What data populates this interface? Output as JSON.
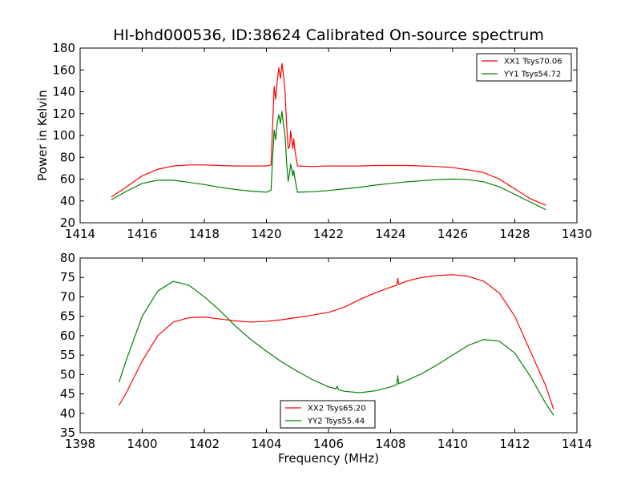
{
  "figure": {
    "title": "HI-bhd000536, ID:38624 Calibrated On-source spectrum",
    "background": "#ffffff"
  },
  "chart_data": [
    {
      "type": "line",
      "ylabel": "Power in Kelvin",
      "xlabel": "",
      "xlim": [
        1414,
        1430
      ],
      "ylim": [
        20,
        180
      ],
      "x_ticks": [
        1414,
        1416,
        1418,
        1420,
        1422,
        1424,
        1426,
        1428,
        1430
      ],
      "y_ticks": [
        20,
        40,
        60,
        80,
        100,
        120,
        140,
        160,
        180
      ],
      "grid": false,
      "legend": {
        "position": "top-right",
        "entries": [
          "XX1 Tsys70.06",
          "YY1 Tsys54.72"
        ]
      },
      "series": [
        {
          "name": "XX1 Tsys70.06",
          "color": "#ff0000",
          "points": [
            [
              1415.0,
              43.5
            ],
            [
              1415.5,
              53
            ],
            [
              1416.0,
              63
            ],
            [
              1416.5,
              69
            ],
            [
              1417.0,
              72
            ],
            [
              1417.5,
              73
            ],
            [
              1418.0,
              73
            ],
            [
              1418.5,
              72.5
            ],
            [
              1419.0,
              72
            ],
            [
              1419.5,
              72
            ],
            [
              1420.0,
              72
            ],
            [
              1420.15,
              73
            ],
            [
              1420.2,
              110
            ],
            [
              1420.25,
              145
            ],
            [
              1420.3,
              133
            ],
            [
              1420.35,
              150
            ],
            [
              1420.4,
              162
            ],
            [
              1420.45,
              152
            ],
            [
              1420.5,
              166
            ],
            [
              1420.55,
              155
            ],
            [
              1420.6,
              140
            ],
            [
              1420.65,
              110
            ],
            [
              1420.7,
              88
            ],
            [
              1420.75,
              90
            ],
            [
              1420.78,
              104
            ],
            [
              1420.82,
              95
            ],
            [
              1420.85,
              88
            ],
            [
              1420.88,
              97
            ],
            [
              1420.92,
              86
            ],
            [
              1421.0,
              72
            ],
            [
              1421.5,
              71.5
            ],
            [
              1422.0,
              72
            ],
            [
              1422.5,
              72
            ],
            [
              1423.0,
              72
            ],
            [
              1423.5,
              72.5
            ],
            [
              1424.0,
              72.5
            ],
            [
              1424.5,
              72.5
            ],
            [
              1425.0,
              72
            ],
            [
              1425.5,
              71.5
            ],
            [
              1426.0,
              70.5
            ],
            [
              1426.5,
              68.5
            ],
            [
              1427.0,
              66
            ],
            [
              1427.5,
              60
            ],
            [
              1428.0,
              51
            ],
            [
              1428.5,
              42
            ],
            [
              1429.0,
              36
            ]
          ]
        },
        {
          "name": "YY1 Tsys54.72",
          "color": "#008000",
          "points": [
            [
              1415.0,
              41
            ],
            [
              1415.5,
              49
            ],
            [
              1416.0,
              56
            ],
            [
              1416.5,
              59
            ],
            [
              1417.0,
              59
            ],
            [
              1417.5,
              57
            ],
            [
              1418.0,
              55
            ],
            [
              1418.5,
              52.5
            ],
            [
              1419.0,
              50.5
            ],
            [
              1419.5,
              49
            ],
            [
              1420.0,
              48
            ],
            [
              1420.15,
              50
            ],
            [
              1420.2,
              80
            ],
            [
              1420.25,
              105
            ],
            [
              1420.3,
              96
            ],
            [
              1420.35,
              112
            ],
            [
              1420.4,
              119
            ],
            [
              1420.45,
              111
            ],
            [
              1420.5,
              122
            ],
            [
              1420.55,
              110
            ],
            [
              1420.6,
              100
            ],
            [
              1420.65,
              75
            ],
            [
              1420.7,
              58
            ],
            [
              1420.75,
              66
            ],
            [
              1420.78,
              74
            ],
            [
              1420.82,
              68
            ],
            [
              1420.85,
              63
            ],
            [
              1420.88,
              68
            ],
            [
              1420.92,
              60
            ],
            [
              1421.0,
              48
            ],
            [
              1421.5,
              48.5
            ],
            [
              1422.0,
              49.5
            ],
            [
              1422.5,
              51
            ],
            [
              1423.0,
              52.5
            ],
            [
              1423.5,
              54.5
            ],
            [
              1424.0,
              56
            ],
            [
              1424.5,
              57.5
            ],
            [
              1425.0,
              58.5
            ],
            [
              1425.5,
              59.5
            ],
            [
              1426.0,
              60
            ],
            [
              1426.5,
              59.5
            ],
            [
              1427.0,
              57.5
            ],
            [
              1427.5,
              53
            ],
            [
              1428.0,
              46
            ],
            [
              1428.5,
              39
            ],
            [
              1429.0,
              32
            ]
          ]
        }
      ]
    },
    {
      "type": "line",
      "ylabel": "",
      "xlabel": "Frequency (MHz)",
      "xlim": [
        1398,
        1414
      ],
      "ylim": [
        35,
        80
      ],
      "x_ticks": [
        1398,
        1400,
        1402,
        1404,
        1406,
        1408,
        1410,
        1412,
        1414
      ],
      "y_ticks": [
        35,
        40,
        45,
        50,
        55,
        60,
        65,
        70,
        75,
        80
      ],
      "grid": false,
      "legend": {
        "position": "bottom-center",
        "entries": [
          "XX2 Tsys65.20",
          "YY2 Tsys55.44"
        ]
      },
      "series": [
        {
          "name": "XX2 Tsys65.20",
          "color": "#ff0000",
          "points": [
            [
              1399.25,
              42
            ],
            [
              1399.5,
              45.5
            ],
            [
              1400.0,
              53.5
            ],
            [
              1400.5,
              60
            ],
            [
              1401.0,
              63.5
            ],
            [
              1401.5,
              64.6
            ],
            [
              1402.0,
              64.8
            ],
            [
              1402.5,
              64.3
            ],
            [
              1403.0,
              63.8
            ],
            [
              1403.5,
              63.5
            ],
            [
              1404.0,
              63.7
            ],
            [
              1404.5,
              64.1
            ],
            [
              1405.0,
              64.7
            ],
            [
              1405.5,
              65.3
            ],
            [
              1406.0,
              66
            ],
            [
              1406.5,
              67.3
            ],
            [
              1407.0,
              69.3
            ],
            [
              1407.5,
              71
            ],
            [
              1408.0,
              72.5
            ],
            [
              1408.2,
              73
            ],
            [
              1408.23,
              74.8
            ],
            [
              1408.26,
              73.2
            ],
            [
              1408.5,
              74
            ],
            [
              1409.0,
              75
            ],
            [
              1409.5,
              75.5
            ],
            [
              1410.0,
              75.7
            ],
            [
              1410.5,
              75.3
            ],
            [
              1411.0,
              74
            ],
            [
              1411.5,
              71
            ],
            [
              1412.0,
              65
            ],
            [
              1412.5,
              56
            ],
            [
              1413.0,
              47
            ],
            [
              1413.25,
              41
            ]
          ]
        },
        {
          "name": "YY2 Tsys55.44",
          "color": "#008000",
          "points": [
            [
              1399.25,
              48
            ],
            [
              1399.5,
              54
            ],
            [
              1400.0,
              65
            ],
            [
              1400.5,
              71.5
            ],
            [
              1401.0,
              74
            ],
            [
              1401.5,
              73
            ],
            [
              1402.0,
              70
            ],
            [
              1402.5,
              66.5
            ],
            [
              1403.0,
              62.5
            ],
            [
              1403.5,
              59
            ],
            [
              1404.0,
              56
            ],
            [
              1404.5,
              53.2
            ],
            [
              1405.0,
              50.8
            ],
            [
              1405.5,
              48.6
            ],
            [
              1406.0,
              46.8
            ],
            [
              1406.25,
              46.3
            ],
            [
              1406.28,
              47
            ],
            [
              1406.32,
              46.1
            ],
            [
              1406.5,
              45.7
            ],
            [
              1407.0,
              45.3
            ],
            [
              1407.5,
              45.8
            ],
            [
              1408.0,
              46.8
            ],
            [
              1408.2,
              47.4
            ],
            [
              1408.23,
              49.7
            ],
            [
              1408.26,
              47.6
            ],
            [
              1408.5,
              48.4
            ],
            [
              1409.0,
              50.2
            ],
            [
              1409.5,
              52.5
            ],
            [
              1410.0,
              55
            ],
            [
              1410.5,
              57.5
            ],
            [
              1411.0,
              59
            ],
            [
              1411.5,
              58.6
            ],
            [
              1412.0,
              55.5
            ],
            [
              1412.5,
              49.5
            ],
            [
              1413.0,
              42.5
            ],
            [
              1413.25,
              39.5
            ]
          ]
        }
      ]
    }
  ]
}
